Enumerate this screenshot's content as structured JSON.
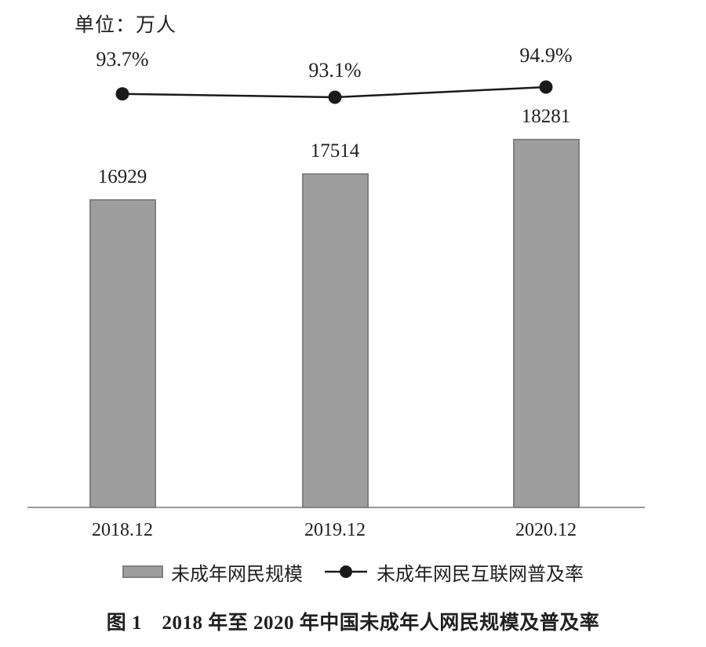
{
  "chart_data": {
    "type": "combo",
    "categories": [
      "2018.12",
      "2019.12",
      "2020.12"
    ],
    "series": [
      {
        "name": "未成年网民规模",
        "type": "bar",
        "unit": "万人",
        "values": [
          16929,
          17514,
          18281
        ],
        "value_labels": [
          "16929",
          "17514",
          "18281"
        ]
      },
      {
        "name": "未成年网民互联网普及率",
        "type": "line",
        "unit": "%",
        "values": [
          93.7,
          93.1,
          94.9
        ],
        "value_labels": [
          "93.7%",
          "93.1%",
          "94.9%"
        ]
      }
    ],
    "unit_label": "单位：万人",
    "title": "图 1　2018 年至 2020 年中国未成年人网民规模及普及率",
    "bar_ylim": [
      10000,
      19500
    ],
    "grid": false,
    "legend_position": "bottom",
    "colors": {
      "bar_fill": "#9e9e9e",
      "bar_border": "#808080",
      "line": "#1a1a1a",
      "axis": "#9a9a9a",
      "text": "#1f1f1f"
    }
  }
}
